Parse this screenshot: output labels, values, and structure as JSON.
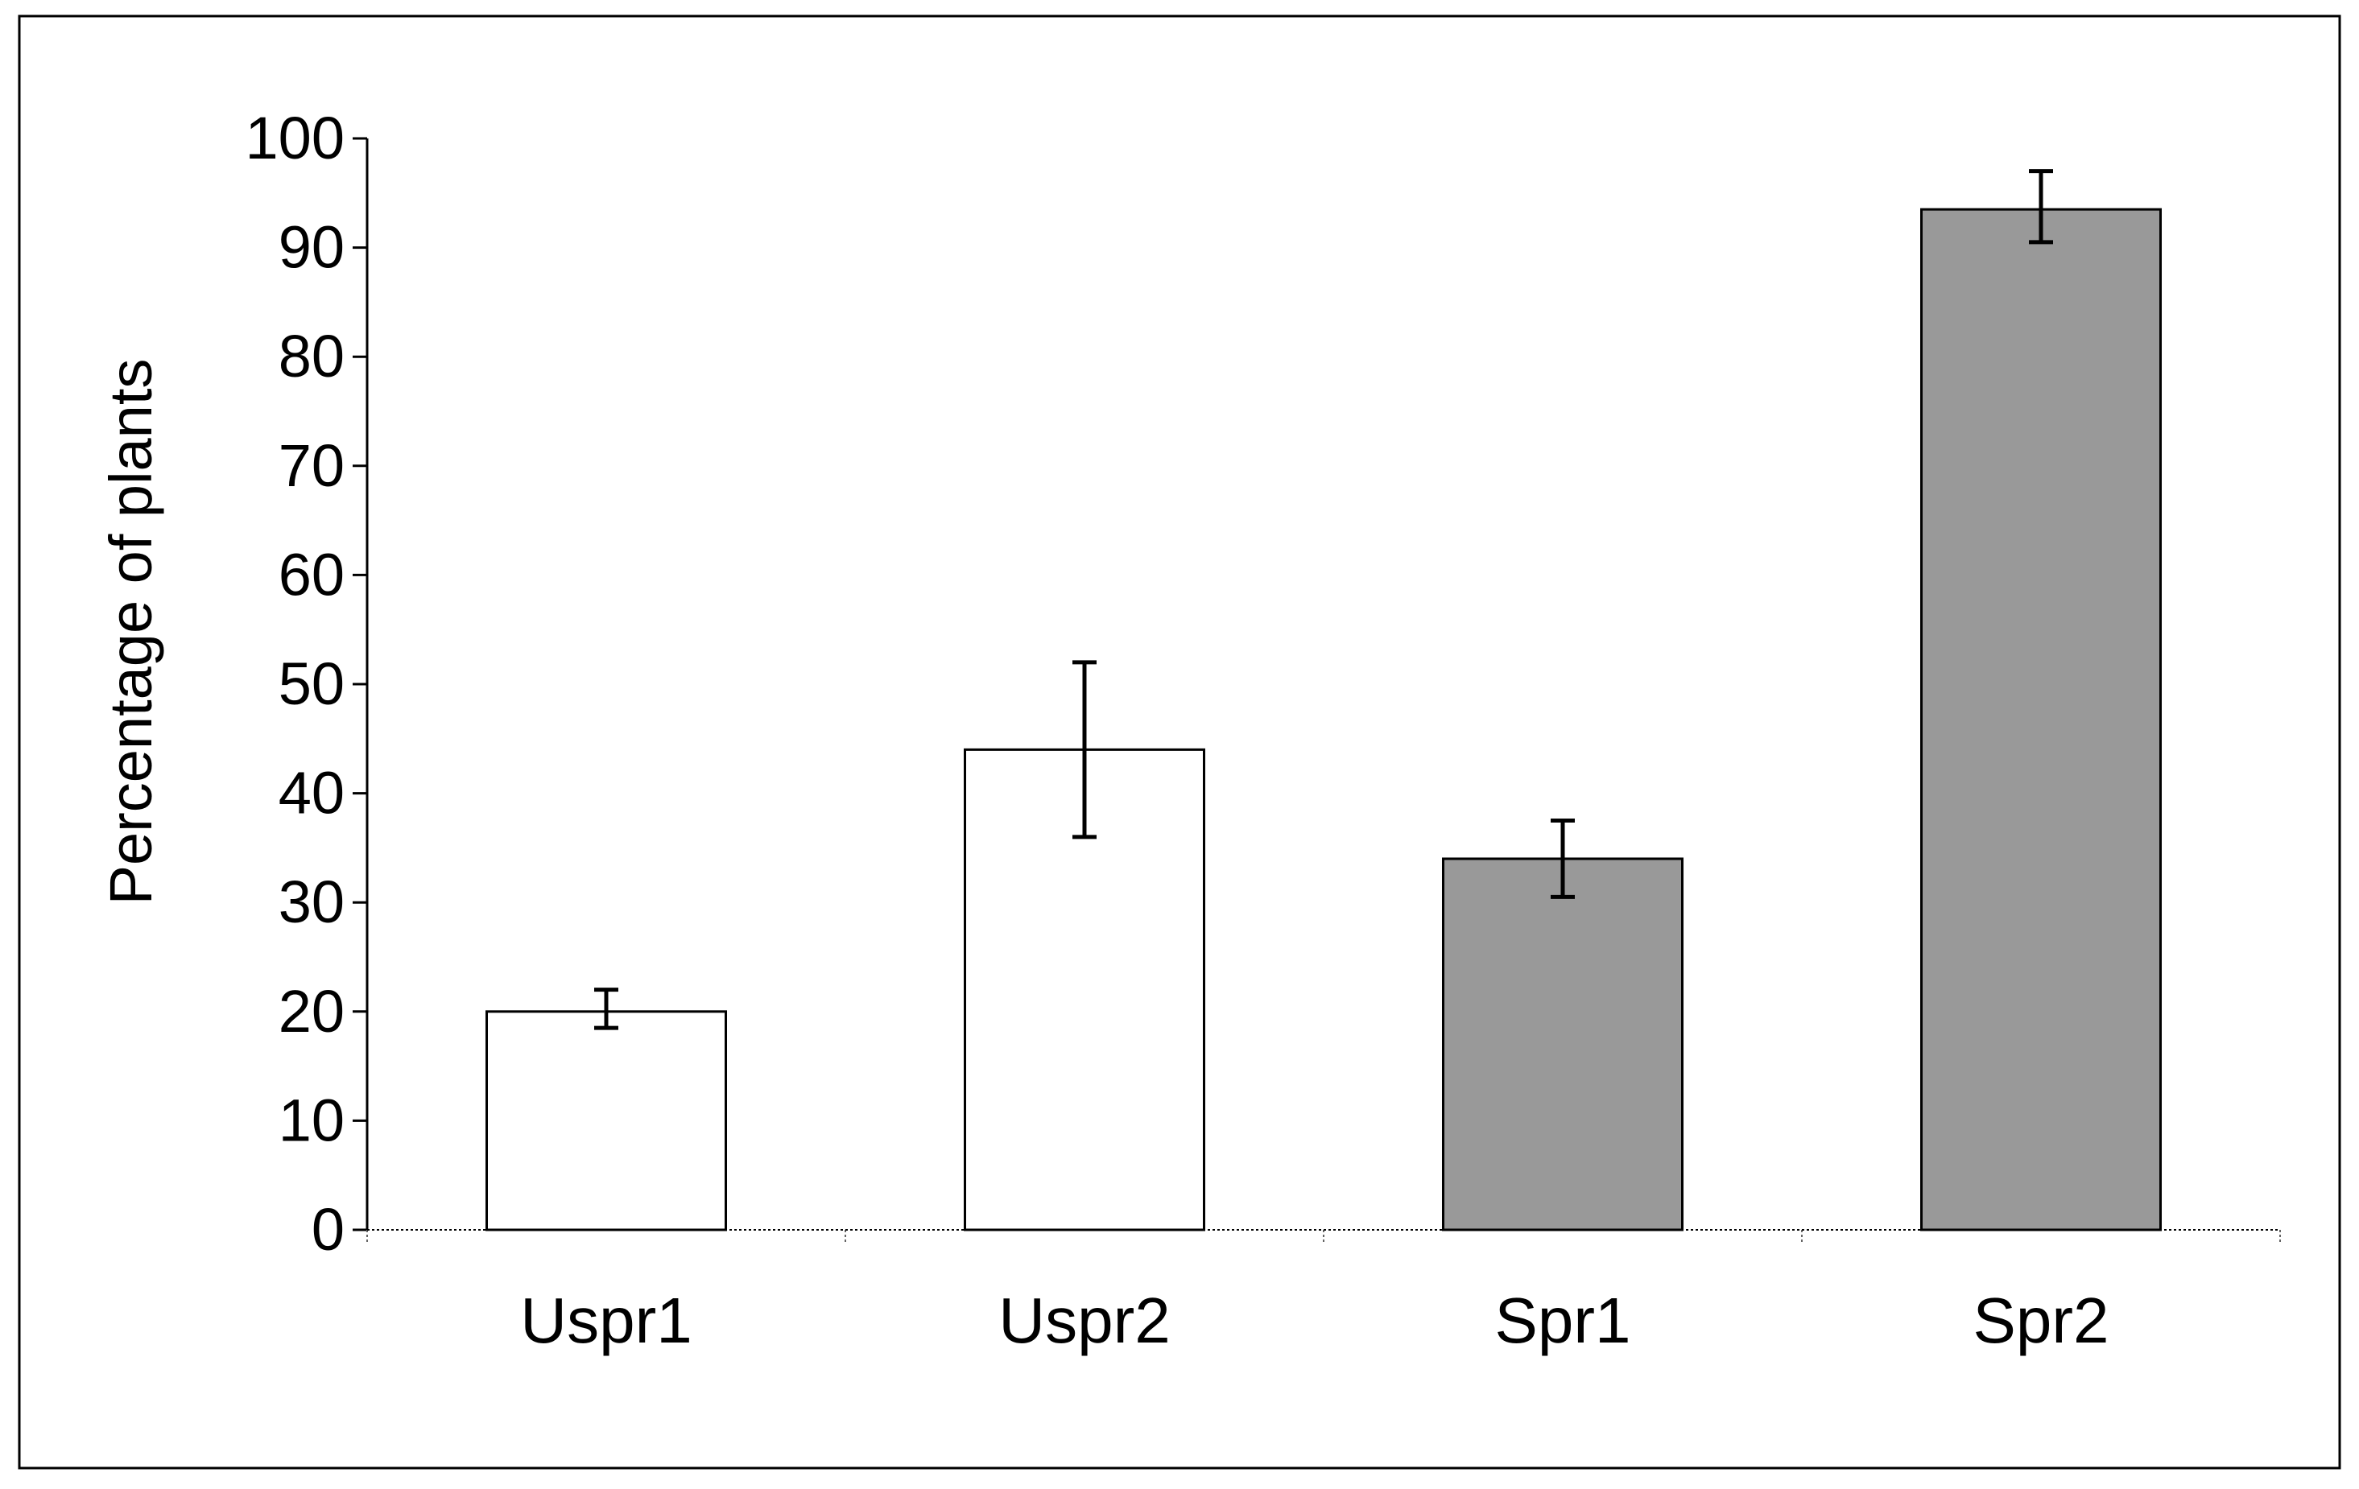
{
  "chart_data": {
    "type": "bar",
    "title": "",
    "xlabel": "",
    "ylabel": "Percentage of plants",
    "ylim": [
      0,
      100
    ],
    "yticks": [
      "0",
      "10",
      "20",
      "30",
      "40",
      "50",
      "60",
      "70",
      "80",
      "90",
      "100"
    ],
    "categories": [
      "Uspr1",
      "Uspr2",
      "Spr1",
      "Spr2"
    ],
    "values": [
      20,
      44,
      34,
      93.5
    ],
    "errors": [
      {
        "low": 18.5,
        "high": 22
      },
      {
        "low": 36,
        "high": 52
      },
      {
        "low": 30.5,
        "high": 37.5
      },
      {
        "low": 90.5,
        "high": 97
      }
    ],
    "bar_colors": [
      "#ffffff",
      "#ffffff",
      "#999999",
      "#999999"
    ],
    "grid": false,
    "legend": "none"
  }
}
